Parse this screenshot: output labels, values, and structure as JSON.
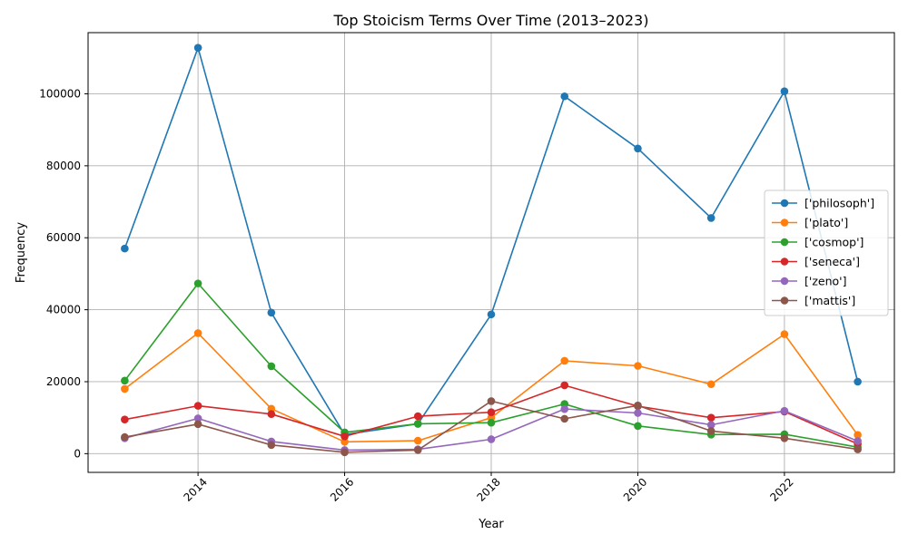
{
  "chart_data": {
    "type": "line",
    "title": "Top Stoicism Terms Over Time (2013–2023)",
    "xlabel": "Year",
    "ylabel": "Frequency",
    "x": [
      2013,
      2014,
      2015,
      2016,
      2017,
      2018,
      2019,
      2020,
      2021,
      2022,
      2023
    ],
    "xticks": [
      2014,
      2016,
      2018,
      2020,
      2022
    ],
    "yticks": [
      0,
      20000,
      40000,
      60000,
      80000,
      100000
    ],
    "xlim": [
      2012.5,
      2023.5
    ],
    "ylim": [
      -5200,
      117000
    ],
    "grid": true,
    "legend_position": "center-right",
    "series": [
      {
        "name": "['philosoph']",
        "color": "#1f77b4",
        "values": [
          57000,
          112800,
          39200,
          5300,
          8300,
          38700,
          99300,
          84800,
          65500,
          100700,
          20000
        ]
      },
      {
        "name": "['plato']",
        "color": "#ff7f0e",
        "values": [
          18000,
          33500,
          12500,
          3300,
          3600,
          10000,
          25800,
          24400,
          19300,
          33200,
          5200
        ]
      },
      {
        "name": "['cosmop']",
        "color": "#2ca02c",
        "values": [
          20300,
          47300,
          24300,
          5900,
          8300,
          8600,
          13800,
          7700,
          5300,
          5400,
          1800
        ]
      },
      {
        "name": "['seneca']",
        "color": "#d62728",
        "values": [
          9500,
          13300,
          11000,
          4800,
          10400,
          11500,
          19000,
          13200,
          10000,
          11700,
          2700
        ]
      },
      {
        "name": "['zeno']",
        "color": "#9467bd",
        "values": [
          4300,
          9800,
          3400,
          1000,
          1200,
          4000,
          12400,
          11300,
          8000,
          11900,
          3500
        ]
      },
      {
        "name": "['mattis']",
        "color": "#8c564b",
        "values": [
          4600,
          8200,
          2400,
          400,
          1000,
          14600,
          9700,
          13400,
          6300,
          4300,
          1200
        ]
      }
    ]
  }
}
